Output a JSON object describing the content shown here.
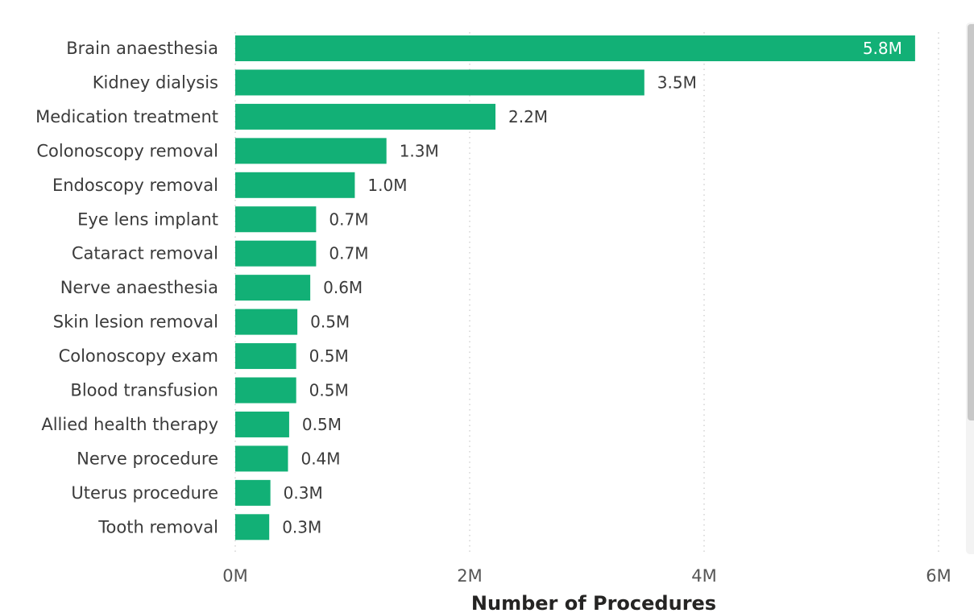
{
  "chart_data": {
    "type": "bar",
    "orientation": "horizontal",
    "title": "",
    "xlabel": "Number of Procedures",
    "ylabel": "",
    "xlim": [
      0,
      6000000
    ],
    "x_ticks": [
      {
        "value": 0,
        "label": "0M"
      },
      {
        "value": 2000000,
        "label": "2M"
      },
      {
        "value": 4000000,
        "label": "4M"
      },
      {
        "value": 6000000,
        "label": "6M"
      }
    ],
    "grid": "vertical dotted",
    "bar_color": "#12b076",
    "categories": [
      "Brain anaesthesia",
      "Kidney dialysis",
      "Medication treatment",
      "Colonoscopy removal",
      "Endoscopy removal",
      "Eye lens implant",
      "Cataract removal",
      "Nerve anaesthesia",
      "Skin lesion removal",
      "Colonoscopy exam",
      "Blood transfusion",
      "Allied health therapy",
      "Nerve procedure",
      "Uterus procedure",
      "Tooth removal"
    ],
    "values": [
      5800000,
      3490000,
      2220000,
      1290000,
      1020000,
      690000,
      690000,
      640000,
      530000,
      520000,
      520000,
      460000,
      450000,
      300000,
      290000
    ],
    "value_labels": [
      "5.8M",
      "3.5M",
      "2.2M",
      "1.3M",
      "1.0M",
      "0.7M",
      "0.7M",
      "0.6M",
      "0.5M",
      "0.5M",
      "0.5M",
      "0.5M",
      "0.4M",
      "0.3M",
      "0.3M"
    ]
  }
}
